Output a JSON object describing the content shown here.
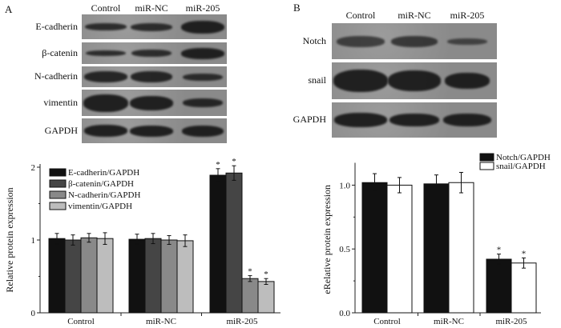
{
  "panel_a": {
    "letter": "A",
    "lanes": [
      "Control",
      "miR-NC",
      "miR-205"
    ],
    "blots": [
      "E-cadherin",
      "β-catenin",
      "N-cadherin",
      "vimentin",
      "GAPDH"
    ]
  },
  "panel_b": {
    "letter": "B",
    "lanes": [
      "Control",
      "miR-NC",
      "miR-205"
    ],
    "blots": [
      "Notch",
      "snail",
      "GAPDH"
    ]
  },
  "chart_data": [
    {
      "type": "bar",
      "categories": [
        "Control",
        "miR-NC",
        "miR-205"
      ],
      "ylabel": "Relative protein expression",
      "ylim": [
        0,
        2
      ],
      "yticks": [
        "0",
        "1",
        "2"
      ],
      "legend_position": "top-left",
      "series": [
        {
          "name": "E-cadherin/GAPDH",
          "color": "#111111",
          "values": [
            1.02,
            1.01,
            1.89
          ],
          "errors": [
            0.07,
            0.07,
            0.09
          ],
          "significance": [
            "",
            "",
            "*"
          ]
        },
        {
          "name": "β-catenin/GAPDH",
          "color": "#454545",
          "values": [
            1.0,
            1.02,
            1.92
          ],
          "errors": [
            0.07,
            0.07,
            0.1
          ],
          "significance": [
            "",
            "",
            "*"
          ]
        },
        {
          "name": "N-cadherin/GAPDH",
          "color": "#898989",
          "values": [
            1.03,
            1.0,
            0.47
          ],
          "errors": [
            0.06,
            0.06,
            0.04
          ],
          "significance": [
            "",
            "",
            "*"
          ]
        },
        {
          "name": "vimentin/GAPDH",
          "color": "#bdbdbd",
          "values": [
            1.02,
            0.99,
            0.43
          ],
          "errors": [
            0.08,
            0.08,
            0.04
          ],
          "significance": [
            "",
            "",
            "*"
          ]
        }
      ]
    },
    {
      "type": "bar",
      "categories": [
        "Control",
        "miR-NC",
        "miR-205"
      ],
      "ylabel": "eRelative protein expression",
      "ylim": [
        0,
        1.15
      ],
      "yticks": [
        "0.0",
        "0.5",
        "1.0"
      ],
      "legend_position": "top-right",
      "series": [
        {
          "name": "Notch/GAPDH",
          "color": "#111111",
          "values": [
            1.02,
            1.01,
            0.42
          ],
          "errors": [
            0.07,
            0.07,
            0.04
          ],
          "significance": [
            "",
            "",
            "*"
          ]
        },
        {
          "name": "snail/GAPDH",
          "color": "#ffffff",
          "values": [
            1.0,
            1.02,
            0.39
          ],
          "errors": [
            0.06,
            0.08,
            0.04
          ],
          "significance": [
            "",
            "",
            "*"
          ]
        }
      ]
    }
  ]
}
